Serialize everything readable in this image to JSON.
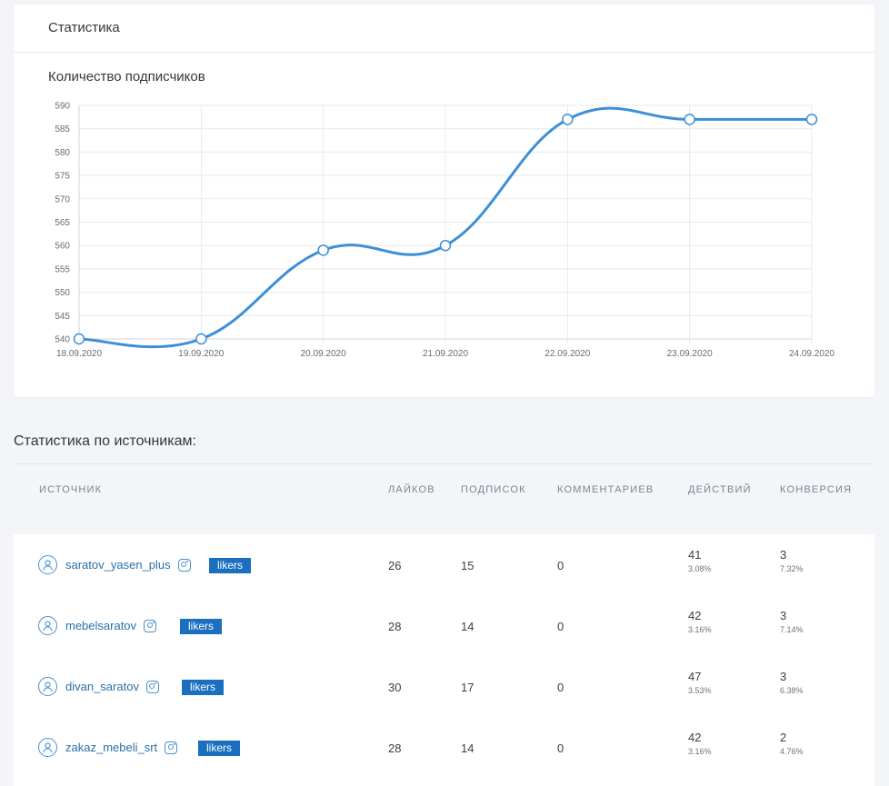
{
  "card": {
    "header_title": "Статистика",
    "chart_title": "Количество подписчиков"
  },
  "chart_data": {
    "type": "line",
    "x": [
      "18.09.2020",
      "19.09.2020",
      "20.09.2020",
      "21.09.2020",
      "22.09.2020",
      "23.09.2020",
      "24.09.2020"
    ],
    "y_ticks": [
      540,
      545,
      550,
      555,
      560,
      565,
      570,
      575,
      580,
      585,
      590
    ],
    "ylim": [
      540,
      590
    ],
    "series": [
      {
        "values": [
          540,
          540,
          559,
          560,
          587,
          587,
          587
        ]
      }
    ],
    "grid": true,
    "line_color": "#3d8fd6"
  },
  "sources": {
    "title": "Статистика по источникам:",
    "columns": [
      "ИСТОЧНИК",
      "ЛАЙКОВ",
      "ПОДПИСОК",
      "КОММЕНТАРИЕВ",
      "ДЕЙСТВИЙ",
      "КОНВЕРСИЯ"
    ],
    "rows": [
      {
        "name": "saratov_yasen_plus",
        "badge": "likers",
        "likes": "26",
        "subs": "15",
        "comments": "0",
        "actions": "41",
        "actions_pct": "3.08%",
        "conv": "3",
        "conv_pct": "7.32%"
      },
      {
        "name": "mebelsaratov",
        "badge": "likers",
        "likes": "28",
        "subs": "14",
        "comments": "0",
        "actions": "42",
        "actions_pct": "3.16%",
        "conv": "3",
        "conv_pct": "7.14%"
      },
      {
        "name": "divan_saratov",
        "badge": "likers",
        "likes": "30",
        "subs": "17",
        "comments": "0",
        "actions": "47",
        "actions_pct": "3.53%",
        "conv": "3",
        "conv_pct": "6.38%"
      },
      {
        "name": "zakaz_mebeli_srt",
        "badge": "likers",
        "likes": "28",
        "subs": "14",
        "comments": "0",
        "actions": "42",
        "actions_pct": "3.16%",
        "conv": "2",
        "conv_pct": "4.76%"
      }
    ]
  }
}
